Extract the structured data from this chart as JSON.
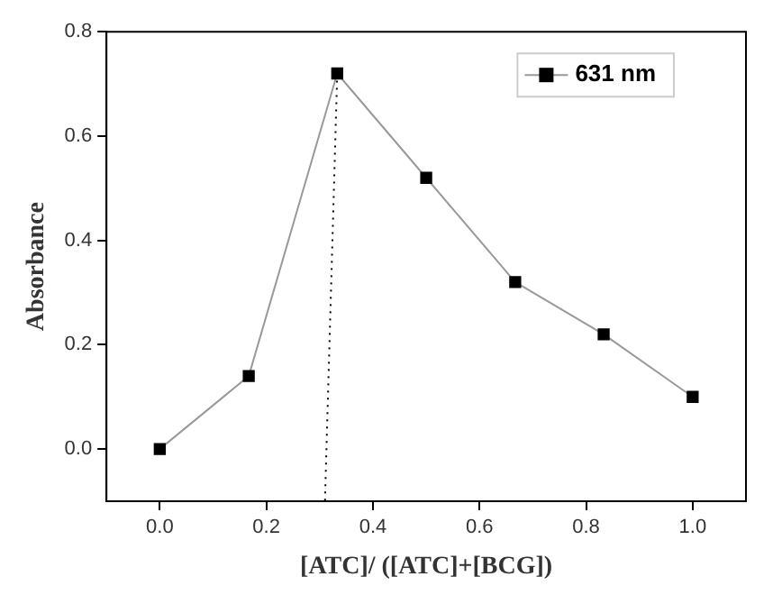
{
  "chart_data": {
    "type": "line",
    "xlabel": "[ATC]/ ([ATC]+[BCG])",
    "ylabel": "Absorbance",
    "xlim": [
      -0.1,
      1.1
    ],
    "xticks": [
      {
        "value": 0,
        "label": "0.0"
      },
      {
        "value": 0.2,
        "label": "0.2"
      },
      {
        "value": 0.4,
        "label": "0.4"
      },
      {
        "value": 0.6,
        "label": "0.6"
      },
      {
        "value": 0.8,
        "label": "0.8"
      },
      {
        "value": 1,
        "label": "1.0"
      }
    ],
    "ylim": [
      -0.1,
      0.8
    ],
    "yticks": [
      {
        "value": 0,
        "label": "0.0"
      },
      {
        "value": 0.2,
        "label": "0.2"
      },
      {
        "value": 0.4,
        "label": "0.4"
      },
      {
        "value": 0.6,
        "label": "0.6"
      },
      {
        "value": 0.8,
        "label": "0.8"
      }
    ],
    "x": [
      0,
      0.167,
      0.333,
      0.5,
      0.667,
      0.833,
      1.0
    ],
    "series": [
      {
        "name": "631 nm",
        "color": "#000000",
        "marker": "square",
        "line_style": "solid",
        "values": [
          0,
          0.14,
          0.72,
          0.52,
          0.32,
          0.22,
          0.1
        ]
      },
      {
        "color": "#000000",
        "marker": "none",
        "line_style": "dotted",
        "x": [
          0.333,
          0.31
        ],
        "values": [
          0.72,
          -0.1
        ]
      }
    ],
    "grid": false,
    "legend": "top right"
  }
}
